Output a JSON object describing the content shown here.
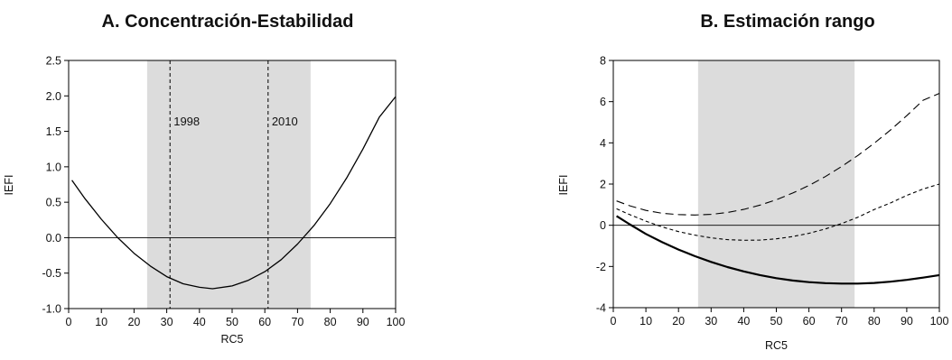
{
  "chart_data": [
    {
      "type": "line",
      "title": "A. Concentración-Estabilidad",
      "xlabel": "RC5",
      "ylabel": "IEFI",
      "xlim": [
        0,
        100
      ],
      "ylim": [
        -1.0,
        2.5
      ],
      "xticks": [
        "0",
        "10",
        "20",
        "30",
        "40",
        "50",
        "60",
        "70",
        "80",
        "90",
        "100"
      ],
      "yticks": [
        "2.5",
        "2.0",
        "1.5",
        "1.0",
        "0.5",
        "0.0",
        "-0.5",
        "-1.0"
      ],
      "shaded_band": [
        24,
        74
      ],
      "reference_line_y": 0,
      "vertical_markers": [
        {
          "x": 31,
          "label": "1998"
        },
        {
          "x": 61,
          "label": "2010"
        }
      ],
      "series": [
        {
          "style": "solid",
          "x": [
            1,
            5,
            10,
            15,
            20,
            25,
            30,
            35,
            40,
            44,
            50,
            55,
            60,
            65,
            70,
            75,
            80,
            85,
            90,
            95,
            100
          ],
          "values": [
            0.81,
            0.55,
            0.26,
            0.0,
            -0.22,
            -0.4,
            -0.55,
            -0.65,
            -0.7,
            -0.72,
            -0.68,
            -0.6,
            -0.48,
            -0.31,
            -0.09,
            0.17,
            0.48,
            0.84,
            1.25,
            1.7,
            1.99
          ]
        }
      ]
    },
    {
      "type": "line",
      "title": "B. Estimación rango",
      "xlabel": "RC5",
      "ylabel": "IEFI",
      "xlim": [
        0,
        100
      ],
      "ylim": [
        -4,
        8
      ],
      "xticks": [
        "0",
        "10",
        "20",
        "30",
        "40",
        "50",
        "60",
        "70",
        "80",
        "90",
        "100"
      ],
      "yticks": [
        "8",
        "6",
        "4",
        "2",
        "0",
        "-2",
        "-4"
      ],
      "shaded_band": [
        26,
        74
      ],
      "reference_line_y": 0,
      "series": [
        {
          "style": "long-dash",
          "x": [
            1,
            5,
            10,
            15,
            20,
            25,
            30,
            35,
            40,
            45,
            50,
            55,
            60,
            65,
            70,
            75,
            80,
            85,
            90,
            95,
            100
          ],
          "values": [
            1.18,
            0.95,
            0.72,
            0.58,
            0.52,
            0.5,
            0.53,
            0.62,
            0.77,
            0.98,
            1.24,
            1.56,
            1.93,
            2.36,
            2.85,
            3.39,
            3.98,
            4.62,
            5.32,
            6.07,
            6.4
          ]
        },
        {
          "style": "short-dash",
          "x": [
            1,
            5,
            10,
            15,
            20,
            25,
            30,
            35,
            40,
            45,
            50,
            55,
            60,
            65,
            70,
            75,
            80,
            85,
            90,
            95,
            100
          ],
          "values": [
            0.8,
            0.52,
            0.2,
            -0.08,
            -0.31,
            -0.48,
            -0.61,
            -0.7,
            -0.73,
            -0.72,
            -0.66,
            -0.55,
            -0.39,
            -0.18,
            0.08,
            0.39,
            0.76,
            1.08,
            1.45,
            1.76,
            2.0
          ]
        },
        {
          "style": "solid-thick",
          "x": [
            1,
            5,
            10,
            15,
            20,
            25,
            30,
            35,
            40,
            45,
            50,
            55,
            60,
            65,
            70,
            75,
            80,
            85,
            90,
            95,
            100
          ],
          "values": [
            0.45,
            0.05,
            -0.42,
            -0.82,
            -1.18,
            -1.5,
            -1.78,
            -2.03,
            -2.24,
            -2.42,
            -2.57,
            -2.68,
            -2.76,
            -2.81,
            -2.83,
            -2.83,
            -2.8,
            -2.74,
            -2.65,
            -2.54,
            -2.42
          ]
        }
      ]
    }
  ]
}
